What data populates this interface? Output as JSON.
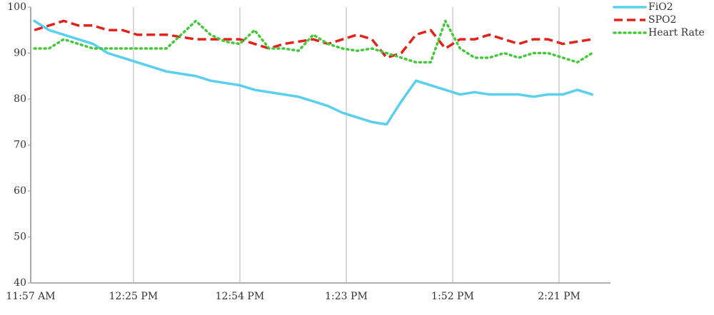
{
  "chart_data": {
    "type": "line",
    "x": [
      718,
      722,
      726,
      730,
      734,
      738,
      742,
      746,
      750,
      754,
      758,
      762,
      766,
      770,
      774,
      778,
      782,
      786,
      790,
      794,
      798,
      802,
      806,
      810,
      814,
      818,
      822,
      826,
      830,
      834,
      838,
      842,
      846,
      850,
      854,
      858,
      862,
      866,
      870
    ],
    "xlim": [
      717,
      875
    ],
    "xticks": [
      {
        "value": 717,
        "label": "11:57 AM"
      },
      {
        "value": 745,
        "label": "12:25 PM"
      },
      {
        "value": 774,
        "label": "12:54 PM"
      },
      {
        "value": 803,
        "label": "1:23 PM"
      },
      {
        "value": 832,
        "label": "1:52 PM"
      },
      {
        "value": 861,
        "label": "2:21 PM"
      }
    ],
    "ylim": [
      40,
      100
    ],
    "yticks": [
      40,
      50,
      60,
      70,
      80,
      90,
      100
    ],
    "grid": "x",
    "legend": "top-right",
    "series": [
      {
        "name": "FiO2",
        "color": "#5bcfee",
        "dash": "solid",
        "values": [
          97,
          95,
          94,
          93,
          92,
          90,
          89,
          88,
          87,
          86,
          85.5,
          85,
          84,
          83.5,
          83,
          82,
          81.5,
          81,
          80.5,
          79.5,
          78.5,
          77,
          76,
          75,
          74.5,
          79.5,
          84,
          83,
          82,
          81,
          81.5,
          81,
          81,
          81,
          80.5,
          81,
          81,
          82,
          81
        ]
      },
      {
        "name": "SPO2",
        "color": "#e2231a",
        "dash": "dashed",
        "values": [
          95,
          96,
          97,
          96,
          96,
          95,
          95,
          94,
          94,
          94,
          93.5,
          93,
          93,
          93,
          93,
          92,
          91,
          92,
          92.5,
          93,
          92,
          93,
          94,
          93,
          89,
          90,
          94,
          95,
          91,
          93,
          93,
          94,
          93,
          92,
          93,
          93,
          92,
          92.5,
          93
        ]
      },
      {
        "name": "Heart Rate",
        "color": "#44c93b",
        "dash": "dotted",
        "values": [
          91,
          91,
          93,
          92,
          91,
          91,
          91,
          91,
          91,
          91,
          94,
          97,
          94,
          92.5,
          92,
          95,
          91,
          91,
          90.5,
          94,
          92,
          91,
          90.5,
          91,
          90,
          89,
          88,
          88,
          97,
          91,
          89,
          89,
          90,
          89,
          90,
          90,
          89,
          88,
          90
        ]
      }
    ]
  }
}
